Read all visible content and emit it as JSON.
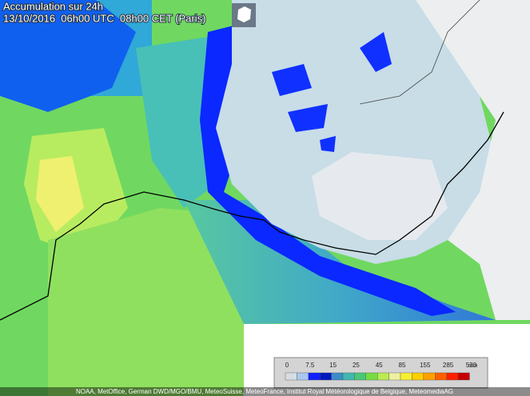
{
  "header": {
    "title": "Accumulation sur 24h",
    "date": "13/10/2016  06h00 UTC  08h00 CET (Paris)"
  },
  "legend": {
    "unit": "mm",
    "ticks": [
      0,
      7.5,
      15,
      25,
      45,
      85,
      155,
      285,
      520
    ],
    "colors": [
      "#d6dde2",
      "#a8c8f0",
      "#1020ff",
      "#0018c0",
      "#3c8cc8",
      "#40b8b0",
      "#48c878",
      "#78dc40",
      "#b8ec50",
      "#eef0a0",
      "#f8f030",
      "#ffd000",
      "#ffa000",
      "#ff6000",
      "#ff2000",
      "#c80000"
    ]
  },
  "credits": "NOAA, MetOffice, German DWD/MGO/BMU, MeteoSuisse, MeteoFrance, Institut Royal Météorologique de Belgique, MeteomediaAG"
}
